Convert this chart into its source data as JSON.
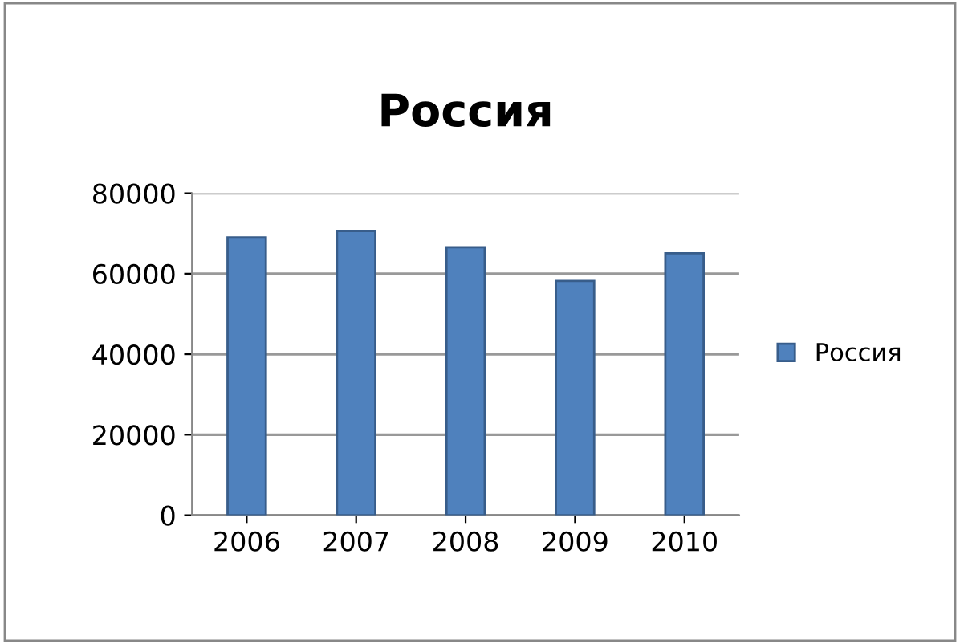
{
  "chart_data": {
    "type": "bar",
    "title": "Россия",
    "categories": [
      "2006",
      "2007",
      "2008",
      "2009",
      "2010"
    ],
    "series": [
      {
        "name": "Россия",
        "color": "#4f81bd",
        "values": [
          69000,
          70600,
          66600,
          58200,
          65100
        ]
      }
    ],
    "ylim": [
      0,
      80000
    ],
    "yticks": [
      0,
      20000,
      40000,
      60000,
      80000
    ],
    "grid": "y",
    "legend": "right"
  }
}
